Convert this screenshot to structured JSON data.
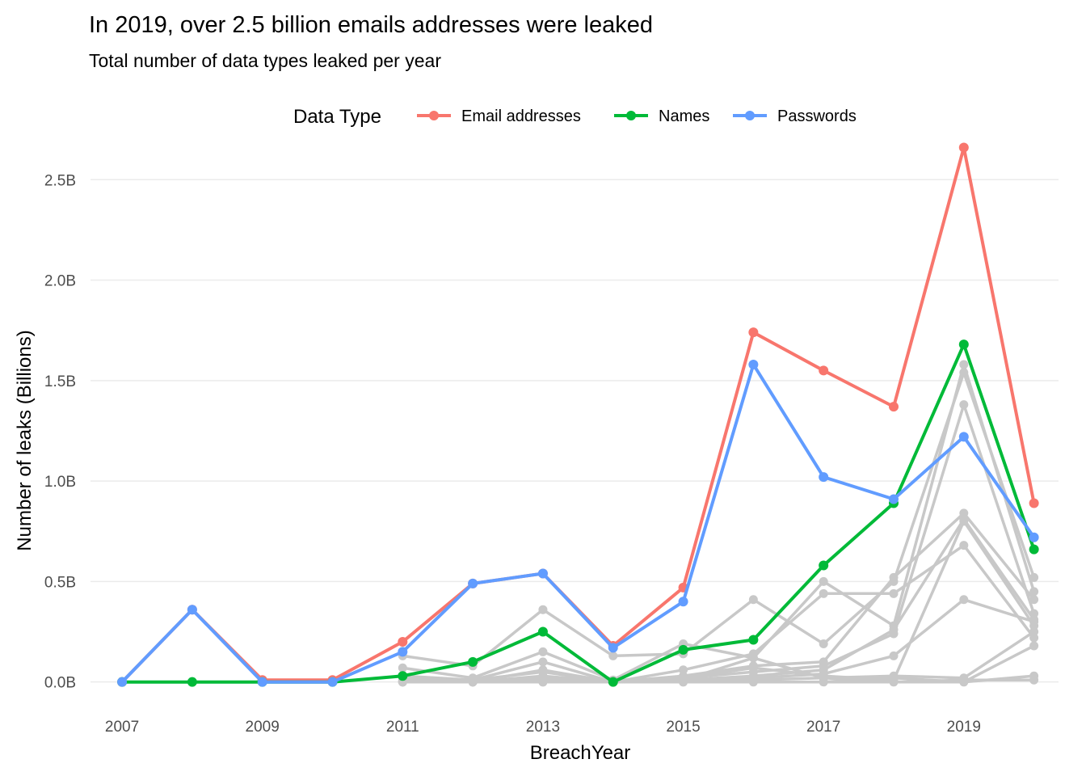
{
  "chart_data": {
    "type": "line",
    "title": "In 2019, over 2.5 billion emails addresses were leaked",
    "subtitle": "Total number of data types leaked per year",
    "xlabel": "BreachYear",
    "ylabel": "Number of leaks (Billions)",
    "x": [
      2007,
      2008,
      2009,
      2010,
      2011,
      2012,
      2013,
      2014,
      2015,
      2016,
      2017,
      2018,
      2019,
      2020
    ],
    "x_ticks": [
      2007,
      2009,
      2011,
      2013,
      2015,
      2017,
      2019
    ],
    "x_tick_labels": [
      "2007",
      "2009",
      "2011",
      "2013",
      "2015",
      "2017",
      "2019"
    ],
    "y_ticks": [
      0,
      0.5,
      1.0,
      1.5,
      2.0,
      2.5
    ],
    "y_tick_labels": [
      "0.0B",
      "0.5B",
      "1.0B",
      "1.5B",
      "2.0B",
      "2.5B"
    ],
    "xlim": [
      2006.55,
      2020.35
    ],
    "ylim": [
      -0.13,
      2.67
    ],
    "grid": true,
    "legend": {
      "title": "Data Type",
      "placement": "top",
      "entries": [
        "Email addresses",
        "Names",
        "Passwords"
      ]
    },
    "series": [
      {
        "name": "Email addresses",
        "color": "#F8766D",
        "values": [
          0.0,
          0.36,
          0.01,
          0.01,
          0.2,
          0.49,
          0.54,
          0.18,
          0.47,
          1.74,
          1.55,
          1.37,
          2.66,
          0.89
        ]
      },
      {
        "name": "Names",
        "color": "#00BA38",
        "values": [
          0.0,
          0.0,
          0.0,
          0.0,
          0.03,
          0.1,
          0.25,
          0.0,
          0.16,
          0.21,
          0.58,
          0.89,
          1.68,
          0.66
        ]
      },
      {
        "name": "Passwords",
        "color": "#619CFF",
        "values": [
          0.0,
          0.36,
          0.0,
          0.0,
          0.15,
          0.49,
          0.54,
          0.17,
          0.4,
          1.58,
          1.02,
          0.91,
          1.22,
          0.72
        ]
      }
    ],
    "background_series_color": "#C8C8C8",
    "background_series": [
      {
        "x": [
          2011,
          2012,
          2013,
          2014,
          2015,
          2016,
          2017,
          2018,
          2019,
          2020
        ],
        "values": [
          0.13,
          0.08,
          0.36,
          0.13,
          0.14,
          0.41,
          0.19,
          0.5,
          1.54,
          0.52
        ]
      },
      {
        "x": [
          2011,
          2012,
          2013,
          2014,
          2015,
          2016,
          2017,
          2018,
          2019,
          2020
        ],
        "values": [
          0.07,
          0.02,
          0.15,
          0.01,
          0.19,
          0.12,
          0.5,
          0.28,
          1.58,
          0.45
        ]
      },
      {
        "x": [
          2011,
          2012,
          2013,
          2014,
          2015,
          2016,
          2017,
          2018,
          2019,
          2020
        ],
        "values": [
          0.03,
          0.01,
          0.1,
          0.0,
          0.06,
          0.14,
          0.44,
          0.44,
          0.68,
          0.22
        ]
      },
      {
        "x": [
          2011,
          2012,
          2013,
          2014,
          2015,
          2016,
          2017,
          2018,
          2019,
          2020
        ],
        "values": [
          0.01,
          0.0,
          0.06,
          0.0,
          0.03,
          0.08,
          0.1,
          0.52,
          0.84,
          0.41
        ]
      },
      {
        "x": [
          2011,
          2012,
          2013,
          2014,
          2015,
          2016,
          2017,
          2018,
          2019,
          2020
        ],
        "values": [
          0.0,
          0.0,
          0.02,
          0.0,
          0.02,
          0.05,
          0.08,
          0.24,
          1.38,
          0.34
        ]
      },
      {
        "x": [
          2011,
          2012,
          2013,
          2014,
          2015,
          2016,
          2017,
          2018,
          2019,
          2020
        ],
        "values": [
          0.0,
          0.0,
          0.01,
          0.0,
          0.01,
          0.03,
          0.06,
          0.26,
          0.81,
          0.31
        ]
      },
      {
        "x": [
          2011,
          2012,
          2013,
          2014,
          2015,
          2016,
          2017,
          2018,
          2019,
          2020
        ],
        "values": [
          0.0,
          0.0,
          0.0,
          0.0,
          0.01,
          0.02,
          0.04,
          0.13,
          0.41,
          0.3
        ]
      },
      {
        "x": [
          2011,
          2012,
          2013,
          2014,
          2015,
          2016,
          2017,
          2018,
          2019,
          2020
        ],
        "values": [
          0.0,
          0.0,
          0.0,
          0.0,
          0.0,
          0.01,
          0.02,
          0.03,
          0.02,
          0.25
        ]
      },
      {
        "x": [
          2011,
          2012,
          2013,
          2014,
          2015,
          2016,
          2017,
          2018,
          2019,
          2020
        ],
        "values": [
          0.0,
          0.0,
          0.0,
          0.0,
          0.0,
          0.0,
          0.0,
          0.02,
          0.0,
          0.18
        ]
      },
      {
        "x": [
          2011,
          2012,
          2013,
          2014,
          2015,
          2016,
          2017,
          2018,
          2019,
          2020
        ],
        "values": [
          0.0,
          0.0,
          0.0,
          0.0,
          0.0,
          0.0,
          0.0,
          0.0,
          0.0,
          0.03
        ]
      },
      {
        "x": [
          2011,
          2012,
          2013,
          2014,
          2015,
          2016,
          2017,
          2018,
          2019,
          2020
        ],
        "values": [
          0.02,
          0.01,
          0.05,
          0.0,
          0.02,
          0.07,
          0.03,
          0.01,
          0.8,
          0.28
        ]
      },
      {
        "x": [
          2011,
          2012,
          2013,
          2014,
          2015,
          2016,
          2017,
          2018,
          2019,
          2020
        ],
        "values": [
          0.0,
          0.0,
          0.03,
          0.0,
          0.01,
          0.12,
          0.02,
          0.0,
          0.01,
          0.01
        ]
      }
    ]
  }
}
